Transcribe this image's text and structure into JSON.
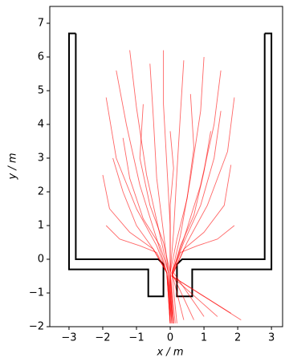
{
  "chart_data": {
    "type": "line",
    "xlabel": "x / m",
    "ylabel": "y / m",
    "xlim": [
      -3.57,
      3.33
    ],
    "ylim": [
      -2,
      7.5
    ],
    "xticks": [
      {
        "value": -3,
        "label": "−3"
      },
      {
        "value": -2,
        "label": "−2"
      },
      {
        "value": -1,
        "label": "−1"
      },
      0,
      1,
      2,
      3
    ],
    "yticks": [
      {
        "value": -2,
        "label": "−2"
      },
      {
        "value": -1,
        "label": "−1"
      },
      0,
      1,
      2,
      3,
      4,
      5,
      6,
      7
    ],
    "series": [
      {
        "color": "#000000",
        "x": [
          -2.8,
          -2.8,
          -0.35,
          -0.2,
          -0.2,
          -0.65,
          -0.65,
          -3.0,
          -3.0,
          -2.8
        ],
        "values": [
          6.7,
          0,
          0,
          -0.15,
          -1.1,
          -1.1,
          -0.3,
          -0.3,
          6.7,
          6.7
        ]
      },
      {
        "color": "#000000",
        "x": [
          2.8,
          2.8,
          0.35,
          0.2,
          0.2,
          0.65,
          0.65,
          3.0,
          3.0,
          2.8
        ],
        "values": [
          6.7,
          0,
          0,
          -0.15,
          -1.1,
          -1.1,
          -0.3,
          -0.3,
          6.7,
          6.7
        ]
      },
      {
        "color": "#ff0000",
        "x": [
          -1.9,
          -1.6,
          -1.0,
          -0.4,
          -0.1,
          0.0
        ],
        "values": [
          4.8,
          3.0,
          1.5,
          0.4,
          -0.4,
          -1.9
        ]
      },
      {
        "color": "#ff0000",
        "x": [
          -1.6,
          -1.3,
          -0.9,
          -0.4,
          -0.1,
          0.05
        ],
        "values": [
          5.6,
          4.0,
          2.2,
          0.6,
          -0.4,
          -1.9
        ]
      },
      {
        "color": "#ff0000",
        "x": [
          -1.2,
          -1.0,
          -0.7,
          -0.3,
          -0.05,
          0.0
        ],
        "values": [
          6.2,
          4.5,
          2.5,
          0.7,
          -0.4,
          -1.9
        ]
      },
      {
        "color": "#ff0000",
        "x": [
          -0.6,
          -0.5,
          -0.4,
          -0.2,
          -0.05,
          0.05
        ],
        "values": [
          5.8,
          4.2,
          2.4,
          0.8,
          -0.4,
          -1.9
        ]
      },
      {
        "color": "#ff0000",
        "x": [
          -0.2,
          -0.2,
          -0.1,
          0.0,
          0.0,
          0.1
        ],
        "values": [
          6.2,
          4.6,
          2.8,
          1.0,
          -0.4,
          -1.9
        ]
      },
      {
        "color": "#ff0000",
        "x": [
          0.4,
          0.3,
          0.2,
          0.1,
          0.0,
          0.1
        ],
        "values": [
          5.9,
          4.3,
          2.6,
          0.8,
          -0.4,
          -1.9
        ]
      },
      {
        "color": "#ff0000",
        "x": [
          1.0,
          0.9,
          0.6,
          0.3,
          0.05,
          0.2
        ],
        "values": [
          6.0,
          4.4,
          2.4,
          0.7,
          -0.4,
          -1.9
        ]
      },
      {
        "color": "#ff0000",
        "x": [
          1.5,
          1.3,
          0.9,
          0.4,
          0.05,
          0.4
        ],
        "values": [
          5.6,
          4.0,
          2.2,
          0.6,
          -0.4,
          -1.8
        ]
      },
      {
        "color": "#ff0000",
        "x": [
          1.9,
          1.7,
          1.1,
          0.5,
          0.1,
          1.0
        ],
        "values": [
          4.8,
          3.2,
          1.6,
          0.5,
          -0.4,
          -1.7
        ]
      },
      {
        "color": "#ff0000",
        "x": [
          -2.0,
          -1.8,
          -1.2,
          -0.5,
          -0.1,
          0.0
        ],
        "values": [
          2.5,
          1.5,
          0.8,
          0.3,
          -0.4,
          -1.9
        ]
      },
      {
        "color": "#ff0000",
        "x": [
          1.8,
          1.6,
          1.0,
          0.4,
          0.05,
          1.8
        ],
        "values": [
          2.8,
          1.6,
          0.8,
          0.3,
          -0.5,
          -1.6
        ]
      },
      {
        "color": "#ff0000",
        "x": [
          -1.4,
          -1.2,
          -0.8,
          -0.3,
          -0.05,
          0.1
        ],
        "values": [
          3.6,
          2.4,
          1.2,
          0.4,
          -0.4,
          -1.9
        ]
      },
      {
        "color": "#ff0000",
        "x": [
          1.2,
          1.0,
          0.7,
          0.3,
          0.05,
          2.1
        ],
        "values": [
          3.8,
          2.6,
          1.3,
          0.4,
          -0.5,
          -1.8
        ]
      },
      {
        "color": "#ff0000",
        "x": [
          -0.8,
          -0.9,
          -0.6,
          -0.2,
          0.0,
          0.05
        ],
        "values": [
          4.6,
          3.0,
          1.6,
          0.5,
          -0.4,
          -1.9
        ]
      },
      {
        "color": "#ff0000",
        "x": [
          0.6,
          0.7,
          0.5,
          0.2,
          0.0,
          0.0
        ],
        "values": [
          4.9,
          3.3,
          1.8,
          0.6,
          -0.4,
          -1.9
        ]
      },
      {
        "color": "#ff0000",
        "x": [
          -1.9,
          -1.5,
          -0.9,
          -0.4,
          -0.1,
          0.1
        ],
        "values": [
          1.0,
          0.6,
          0.4,
          0.2,
          -0.4,
          -1.9
        ]
      },
      {
        "color": "#ff0000",
        "x": [
          1.9,
          1.4,
          0.8,
          0.3,
          0.05,
          1.4
        ],
        "values": [
          1.0,
          0.6,
          0.4,
          0.2,
          -0.5,
          -1.7
        ]
      },
      {
        "color": "#ff0000",
        "x": [
          0.0,
          0.1,
          0.0,
          0.0,
          0.0,
          0.15
        ],
        "values": [
          3.8,
          2.7,
          1.6,
          0.6,
          -0.4,
          -1.9
        ]
      },
      {
        "color": "#ff0000",
        "x": [
          -1.7,
          -1.4,
          -1.0,
          -0.5,
          -0.1,
          0.0
        ],
        "values": [
          3.0,
          2.0,
          1.0,
          0.3,
          -0.4,
          -1.9
        ]
      },
      {
        "color": "#ff0000",
        "x": [
          1.5,
          1.3,
          0.9,
          0.4,
          0.05,
          0.7
        ],
        "values": [
          4.4,
          3.0,
          1.6,
          0.5,
          -0.4,
          -1.8
        ]
      }
    ]
  }
}
